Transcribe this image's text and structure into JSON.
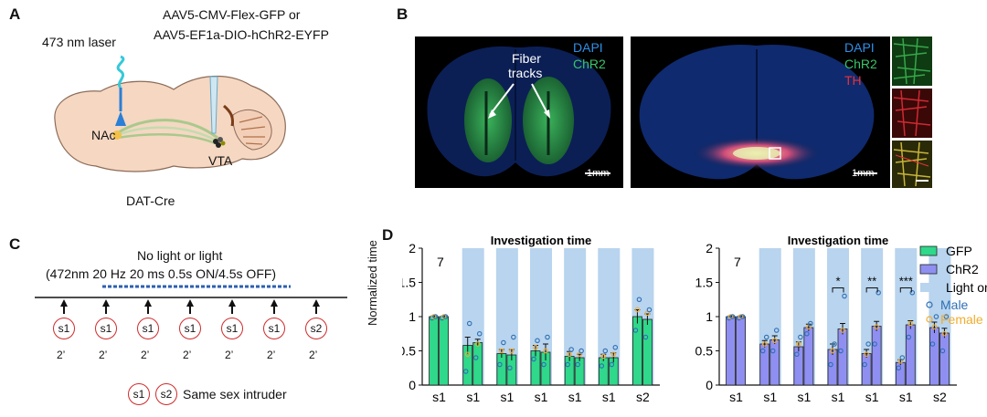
{
  "panels": {
    "a": "A",
    "b": "B",
    "c": "C",
    "d": "D"
  },
  "panel_a": {
    "laser": "473 nm laser",
    "virus_line1": "AAV5-CMV-Flex-GFP  or",
    "virus_line2": "AAV5-EF1a-DIO-hChR2-EYFP",
    "nac": "NAc",
    "vta": "VTA",
    "mouse_line": "DAT-Cre"
  },
  "panel_b": {
    "left": {
      "dapi": "DAPI",
      "chr2": "ChR2",
      "fiber_line1": "Fiber",
      "fiber_line2": "tracks",
      "scale": "1mm"
    },
    "right": {
      "dapi": "DAPI",
      "chr2": "ChR2",
      "th": "TH",
      "scale": "1mm"
    },
    "colors": {
      "dapi": "#2f8fe8",
      "chr2": "#39c46a",
      "th": "#e8303a"
    }
  },
  "panel_c": {
    "line1": "No light or  light",
    "line2": "(472nm 20 Hz 20 ms 0.5s ON/4.5s OFF)",
    "sessions": [
      "s1",
      "s1",
      "s1",
      "s1",
      "s1",
      "s1",
      "s2"
    ],
    "durations": [
      "2’",
      "2’",
      "2’",
      "2’",
      "2’",
      "2’",
      "2’"
    ],
    "legend_s1": "s1",
    "legend_s2": "s2",
    "legend_text": "Same sex intruder"
  },
  "panel_d": {
    "ylabel": "Normalized time",
    "legend": {
      "gfp": "GFP",
      "chr2": "ChR2",
      "light": "Light on",
      "male": "Male",
      "female": "Female"
    },
    "colors": {
      "gfp": "#2fd88a",
      "chr2": "#8f8ff2",
      "light": "#b8d4ee",
      "male": "#2e6fb5",
      "female": "#f0ad2f"
    }
  },
  "chart_data": [
    {
      "type": "bar",
      "title": "Investigation time",
      "n_label": "7",
      "ylabel": "Normalized time",
      "ylim": [
        0,
        2
      ],
      "yticks": [
        "0",
        "0.5",
        "1",
        "1.5",
        "2"
      ],
      "categories": [
        "s1",
        "s1",
        "s1",
        "s1",
        "s1",
        "s1",
        "s2"
      ],
      "light_on": [
        false,
        true,
        true,
        true,
        true,
        true,
        true
      ],
      "series": [
        {
          "name": "GFP",
          "values": [
            1.0,
            0.58,
            0.46,
            0.5,
            0.42,
            0.4,
            1.0
          ],
          "errors": [
            0.01,
            0.12,
            0.06,
            0.08,
            0.07,
            0.05,
            0.1
          ]
        },
        {
          "name": "GFP",
          "values": [
            1.0,
            0.62,
            0.44,
            0.48,
            0.4,
            0.4,
            0.96
          ],
          "errors": [
            0.01,
            0.05,
            0.08,
            0.12,
            0.05,
            0.07,
            0.08
          ]
        }
      ],
      "significance": []
    },
    {
      "type": "bar",
      "title": "Investigation time",
      "n_label": "7",
      "ylabel": "",
      "ylim": [
        0,
        2
      ],
      "yticks": [
        "0",
        "0.5",
        "1",
        "1.5",
        "2"
      ],
      "categories": [
        "s1",
        "s1",
        "s1",
        "s1",
        "s1",
        "s1",
        "s2"
      ],
      "light_on": [
        false,
        true,
        true,
        true,
        true,
        true,
        true
      ],
      "series": [
        {
          "name": "ChR2",
          "values": [
            1.0,
            0.6,
            0.56,
            0.52,
            0.46,
            0.33,
            0.84
          ],
          "errors": [
            0.01,
            0.05,
            0.07,
            0.08,
            0.06,
            0.04,
            0.08
          ]
        },
        {
          "name": "ChR2",
          "values": [
            1.0,
            0.66,
            0.84,
            0.82,
            0.86,
            0.88,
            0.76
          ],
          "errors": [
            0.01,
            0.06,
            0.05,
            0.08,
            0.07,
            0.06,
            0.07
          ]
        }
      ],
      "significance": [
        {
          "session": 3,
          "label": "*"
        },
        {
          "session": 4,
          "label": "**"
        },
        {
          "session": 5,
          "label": "***"
        }
      ]
    }
  ]
}
